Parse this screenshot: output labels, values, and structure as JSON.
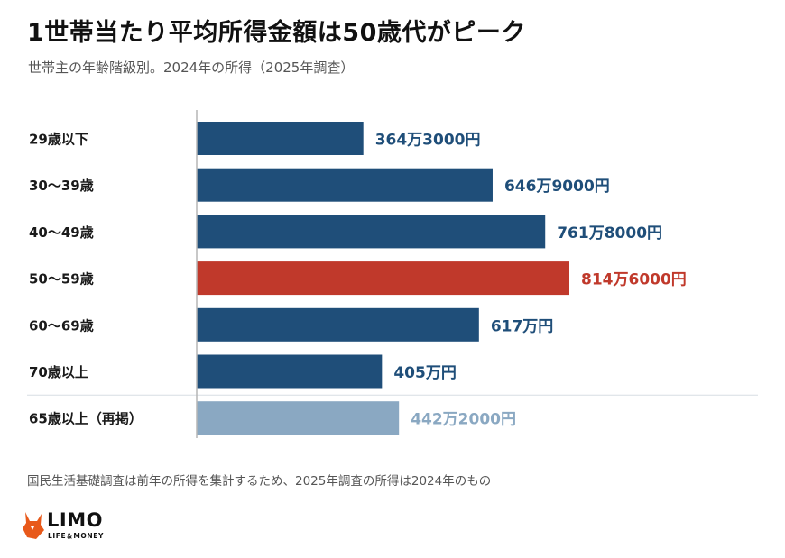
{
  "title": "1世帯当たり平均所得金額は50歳代がピーク",
  "subtitle": "世帯主の年齢階級別。2024年の所得（2025年調査）",
  "note": "国民生活基礎調査は前年の所得を集計するため、2025年調査の所得は2024年のもの",
  "logo": {
    "word": "LIMO",
    "tagline": "LIFE＆MONEY",
    "icon": "fox-icon",
    "color": "#e8591a"
  },
  "colors": {
    "default": "#1f4e79",
    "highlight": "#c0392b",
    "reference": "#8aa8c2"
  },
  "chart_data": {
    "type": "bar",
    "orientation": "horizontal",
    "categories": [
      "29歳以下",
      "30〜39歳",
      "40〜49歳",
      "50〜59歳",
      "60〜69歳",
      "70歳以上",
      "65歳以上（再掲）"
    ],
    "values": [
      364.3,
      646.9,
      761.8,
      814.6,
      617,
      405,
      442.2
    ],
    "unit": "万円",
    "data_labels": [
      "364万3000円",
      "646万9000円",
      "761万8000円",
      "814万6000円",
      "617万円",
      "405万円",
      "442万2000円"
    ],
    "highlight_index": 3,
    "reference_index": 6,
    "xlim": [
      0,
      1000
    ],
    "grid": false,
    "legend": "none"
  }
}
